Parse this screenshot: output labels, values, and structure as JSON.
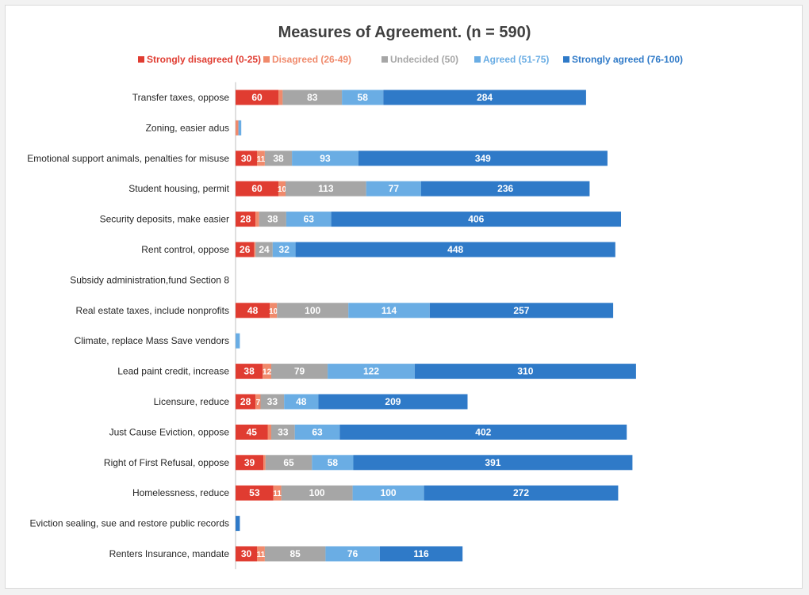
{
  "chart_data": {
    "type": "bar",
    "orientation": "horizontal",
    "stacked": true,
    "title": "Measures of Agreement. (n = 590)",
    "xlabel": "",
    "ylabel": "",
    "xlim": [
      0,
      580
    ],
    "legend_position": "top",
    "grid": false,
    "categories": [
      "Transfer taxes, oppose",
      "Zoning, easier adus",
      "Emotional support animals, penalties for misuse",
      "Student housing, permit",
      "Security deposits, make easier",
      "Rent control, oppose",
      "Subsidy administration,fund Section 8",
      "Real estate taxes, include nonprofits",
      "Climate, replace Mass Save vendors",
      "Lead paint credit, increase",
      "Licensure, reduce",
      "Just Cause Eviction, oppose",
      "Right of First Refusal, oppose",
      "Homelessness, reduce",
      "Eviction sealing, sue and restore public records",
      "Renters Insurance, mandate"
    ],
    "series": [
      {
        "name": "Strongly disagreed (0-25)",
        "color": "#e03c31",
        "values": [
          60,
          0,
          30,
          60,
          28,
          26,
          0,
          48,
          0,
          38,
          28,
          45,
          39,
          53,
          0,
          30
        ]
      },
      {
        "name": "Disagreed (26-49)",
        "color": "#f08a6c",
        "values": [
          6,
          4,
          11,
          10,
          5,
          2,
          0,
          10,
          0,
          12,
          7,
          5,
          3,
          11,
          0,
          11
        ]
      },
      {
        "name": "Undecided (50)",
        "color": "#a6a6a6",
        "values": [
          83,
          0,
          38,
          113,
          38,
          24,
          0,
          100,
          0,
          79,
          33,
          33,
          65,
          100,
          0,
          85
        ]
      },
      {
        "name": "Agreed (51-75)",
        "color": "#6aade4",
        "values": [
          58,
          4,
          93,
          77,
          63,
          32,
          0,
          114,
          6,
          122,
          48,
          63,
          58,
          100,
          0,
          76
        ]
      },
      {
        "name": "Strongly agreed (76-100)",
        "color": "#2f7ac8",
        "values": [
          284,
          0,
          349,
          236,
          406,
          448,
          0,
          257,
          0,
          310,
          209,
          402,
          391,
          272,
          6,
          116
        ]
      }
    ]
  }
}
